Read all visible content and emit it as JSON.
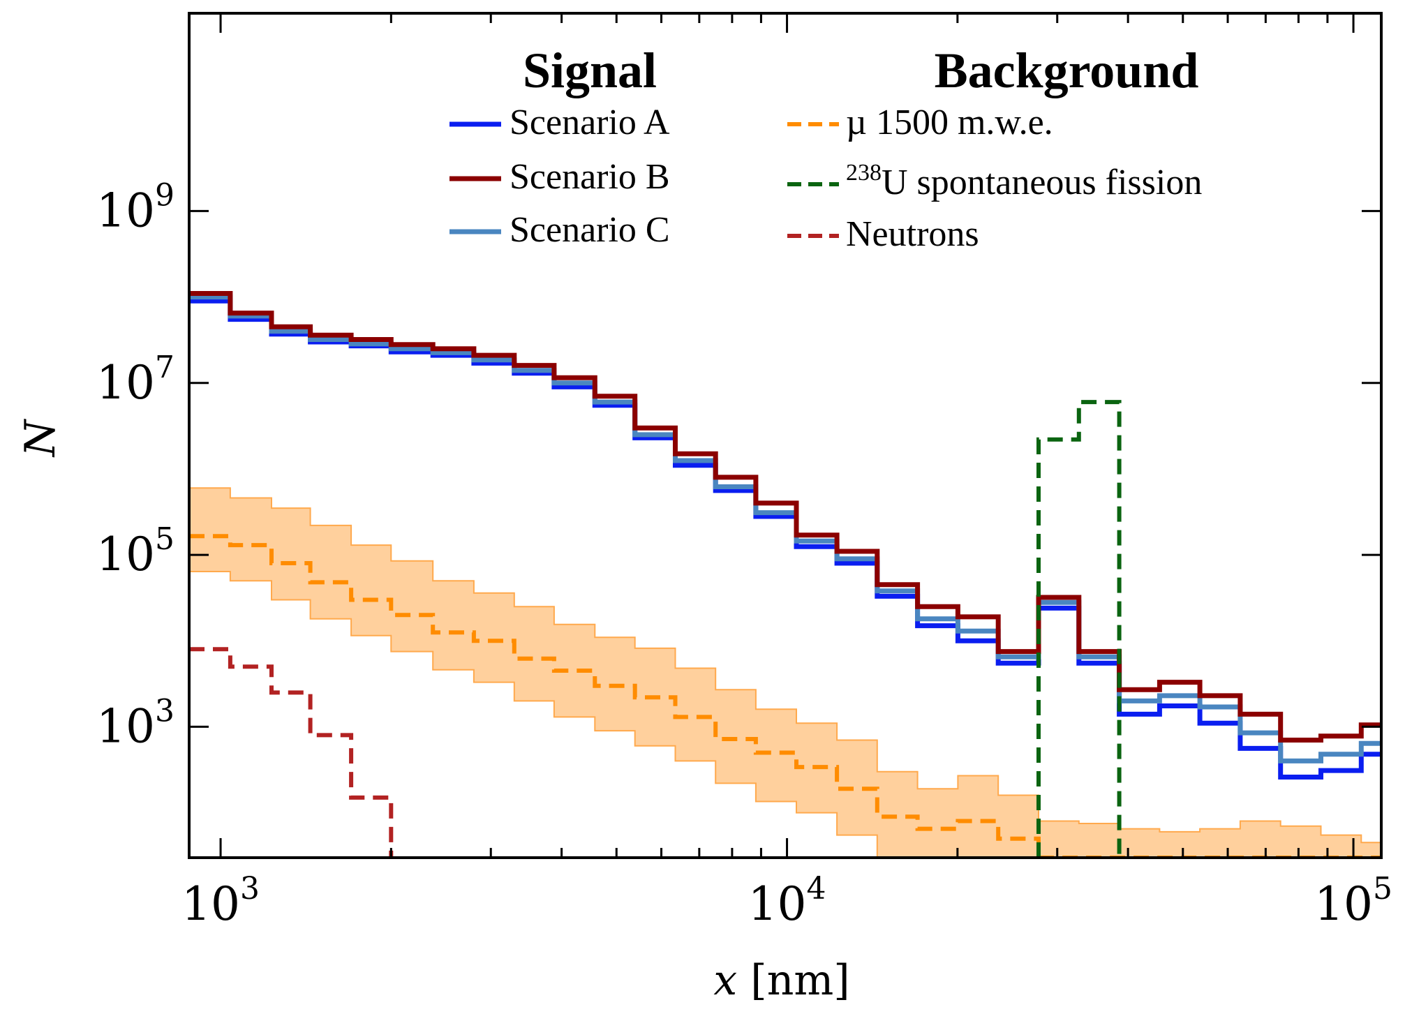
{
  "chart_data": {
    "type": "line",
    "xlabel_var": "x",
    "xlabel_unit": "[nm]",
    "ylabel": "N",
    "xscale": "log",
    "yscale": "log",
    "xlim": [
      880,
      112000
    ],
    "ylim": [
      30,
      200000000000
    ],
    "grid": false,
    "x_ticks": [
      {
        "value": 1000,
        "base": "10",
        "exp": "3"
      },
      {
        "value": 10000,
        "base": "10",
        "exp": "4"
      },
      {
        "value": 100000,
        "base": "10",
        "exp": "5"
      }
    ],
    "y_ticks": [
      {
        "value": 1000,
        "base": "10",
        "exp": "3"
      },
      {
        "value": 100000,
        "base": "10",
        "exp": "5"
      },
      {
        "value": 10000000,
        "base": "10",
        "exp": "7"
      },
      {
        "value": 1000000000,
        "base": "10",
        "exp": "9"
      }
    ],
    "bin_edges": [
      880,
      1040,
      1230,
      1440,
      1700,
      2000,
      2370,
      2800,
      3300,
      3880,
      4580,
      5390,
      6350,
      7480,
      8810,
      10390,
      12250,
      14430,
      17000,
      20030,
      23600,
      27810,
      32760,
      38600,
      45480,
      53580,
      63120,
      74370,
      87620,
      103230,
      112000
    ],
    "legend_titles": {
      "signal": "Signal",
      "background": "Background"
    },
    "series": [
      {
        "name": "Scenario A",
        "group": "signal",
        "color": "#0a1ef0",
        "style": "solid",
        "values": [
          90000000,
          55000000,
          37000000,
          30000000,
          27000000,
          23000000,
          21000000,
          17000000,
          13000000,
          9000000,
          5500000,
          2300000,
          1100000,
          560000,
          280000,
          125000,
          80000,
          33000,
          15000,
          10000,
          5500,
          24000,
          5500,
          1400,
          1750,
          1100,
          560,
          260,
          310,
          480
        ]
      },
      {
        "name": "Scenario B",
        "group": "signal",
        "color": "#8b0000",
        "style": "solid",
        "values": [
          110000000,
          65000000,
          45000000,
          36000000,
          32000000,
          28000000,
          25000000,
          21000000,
          16000000,
          11500000,
          7000000,
          3000000,
          1500000,
          800000,
          400000,
          170000,
          110000,
          45000,
          25000,
          19000,
          7500,
          32000,
          7500,
          2700,
          3300,
          2300,
          1400,
          700,
          780,
          1050
        ]
      },
      {
        "name": "Scenario C",
        "group": "signal",
        "color": "#4a86c0",
        "style": "solid",
        "values": [
          100000000,
          60000000,
          40000000,
          32000000,
          28500000,
          25000000,
          22500000,
          18500000,
          14000000,
          10000000,
          6000000,
          2500000,
          1250000,
          620000,
          310000,
          145000,
          90000,
          38000,
          18000,
          13000,
          6500,
          28000,
          6500,
          2000,
          2300,
          1700,
          850,
          400,
          480,
          640
        ]
      },
      {
        "name": "µ 1500 m.w.e.",
        "group": "background",
        "color": "#ff8c00",
        "style": "dashed",
        "values": [
          165000,
          130000,
          80000,
          48000,
          30000,
          20000,
          12500,
          10000,
          6200,
          4500,
          3000,
          2200,
          1300,
          720,
          500,
          340,
          190,
          90,
          65,
          80,
          50,
          30,
          30,
          30,
          30,
          30,
          30,
          30,
          30,
          30
        ],
        "band_low": [
          64000,
          50000,
          30000,
          18000,
          11500,
          7500,
          4600,
          3300,
          2000,
          1300,
          900,
          600,
          400,
          220,
          135,
          100,
          55,
          30,
          30,
          30,
          30,
          30,
          30,
          30,
          30,
          30,
          30,
          30,
          30,
          30
        ],
        "band_high": [
          600000,
          460000,
          350000,
          220000,
          130000,
          85000,
          50000,
          36000,
          25000,
          15500,
          11000,
          8200,
          4800,
          2700,
          1600,
          1100,
          700,
          300,
          190,
          270,
          160,
          80,
          75,
          65,
          60,
          65,
          80,
          70,
          55,
          45
        ],
        "band_color": "#ffa94d"
      },
      {
        "name": "238U spontaneous fission",
        "label_sup": "238",
        "label_rest": "U spontaneous fission",
        "group": "background",
        "color": "#0a6410",
        "style": "dashed",
        "support": [
          27810,
          38600
        ],
        "values_at": [
          {
            "x_from": 27810,
            "x_to": 32760,
            "y": 2200000
          },
          {
            "x_from": 32760,
            "x_to": 38600,
            "y": 6000000
          }
        ]
      },
      {
        "name": "Neutrons",
        "group": "background",
        "color": "#b22222",
        "style": "dashed",
        "bin_edges": [
          880,
          1040,
          1230,
          1440,
          1700,
          2000
        ],
        "values": [
          8000,
          5000,
          2500,
          800,
          150
        ]
      }
    ]
  }
}
